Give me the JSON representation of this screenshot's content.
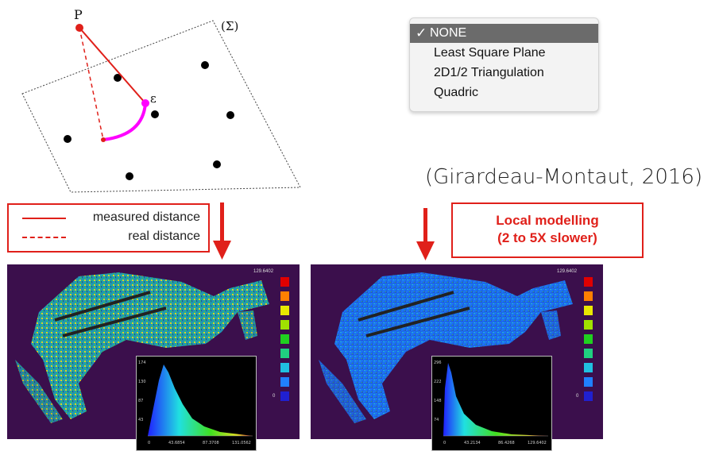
{
  "diagram": {
    "point_label": "P",
    "epsilon_label": "ε",
    "plane_label": "(Σ)"
  },
  "menu": {
    "items": [
      {
        "label": "NONE",
        "selected": true,
        "check": "✓"
      },
      {
        "label": "Least Square Plane",
        "selected": false
      },
      {
        "label": "2D1/2 Triangulation",
        "selected": false
      },
      {
        "label": "Quadric",
        "selected": false
      }
    ]
  },
  "citation": "(Girardeau-Montaut, 2016)",
  "legend": {
    "measured": "measured distance",
    "real": "real distance"
  },
  "local_modelling": {
    "line1": "Local modelling",
    "line2": "(2 to 5X slower)"
  },
  "panels": [
    {
      "scale_max": "129.6402",
      "scale_min": "0",
      "hist_y_ticks": [
        "174",
        "130",
        "87",
        "43"
      ],
      "hist_x_ticks": [
        "0",
        "43.6854",
        "87.3708",
        "131.0562"
      ]
    },
    {
      "scale_max": "129.6402",
      "scale_min": "0",
      "hist_y_ticks": [
        "296",
        "222",
        "148",
        "74"
      ],
      "hist_x_ticks": [
        "0",
        "43.2134",
        "86.4268",
        "129.6402"
      ]
    }
  ],
  "colors": {
    "accent_red": "#e0201a",
    "magenta": "#ff00ff",
    "panel_bg": "#3b0f4c"
  }
}
